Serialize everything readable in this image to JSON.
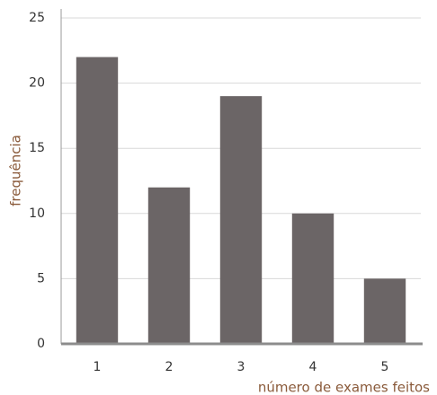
{
  "chart_data": {
    "type": "bar",
    "categories": [
      "1",
      "2",
      "3",
      "4",
      "5"
    ],
    "values": [
      22,
      12,
      19,
      10,
      5
    ],
    "color": "#6b6566",
    "ylim": [
      0,
      25
    ],
    "yticks": [
      0,
      5,
      10,
      15,
      20,
      25
    ],
    "grid": true,
    "x_label": "número de exames feitos",
    "y_label": "frequência"
  }
}
